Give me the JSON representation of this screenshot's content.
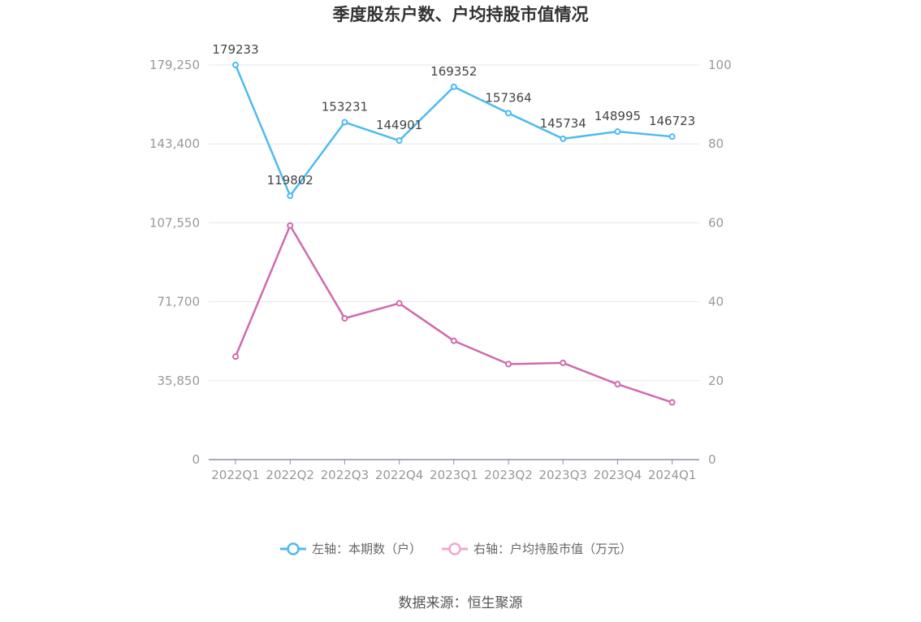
{
  "chart_data": {
    "type": "line",
    "title": "季度股东户数、户均持股市值情况",
    "categories": [
      "2022Q1",
      "2022Q2",
      "2022Q3",
      "2022Q4",
      "2023Q1",
      "2023Q2",
      "2023Q3",
      "2023Q4",
      "2024Q1"
    ],
    "left_axis": {
      "ticks": [
        "0",
        "35,850",
        "71,700",
        "107,550",
        "143,400",
        "179,250"
      ],
      "ylim": [
        0,
        179250
      ]
    },
    "right_axis": {
      "ticks": [
        "0",
        "20",
        "40",
        "60",
        "80",
        "100"
      ],
      "ylim": [
        0,
        100
      ]
    },
    "series": [
      {
        "name": "左轴：本期数（户）",
        "axis": "left",
        "color": "#4dbbee",
        "values": [
          179233,
          119802,
          153231,
          144901,
          169352,
          157364,
          145734,
          148995,
          146723
        ],
        "labels": [
          "179233",
          "119802",
          "153231",
          "144901",
          "169352",
          "157364",
          "145734",
          "148995",
          "146723"
        ]
      },
      {
        "name": "右轴：户均持股市值（万元）",
        "axis": "right",
        "color": "#d16aad",
        "legend_color": "#f0a8cf",
        "values": [
          26.1,
          59.3,
          35.8,
          39.6,
          30.1,
          24.2,
          24.5,
          19.1,
          14.5
        ]
      }
    ],
    "grid": true,
    "legend_position": "bottom"
  },
  "source_text": "数据来源：恒生聚源"
}
